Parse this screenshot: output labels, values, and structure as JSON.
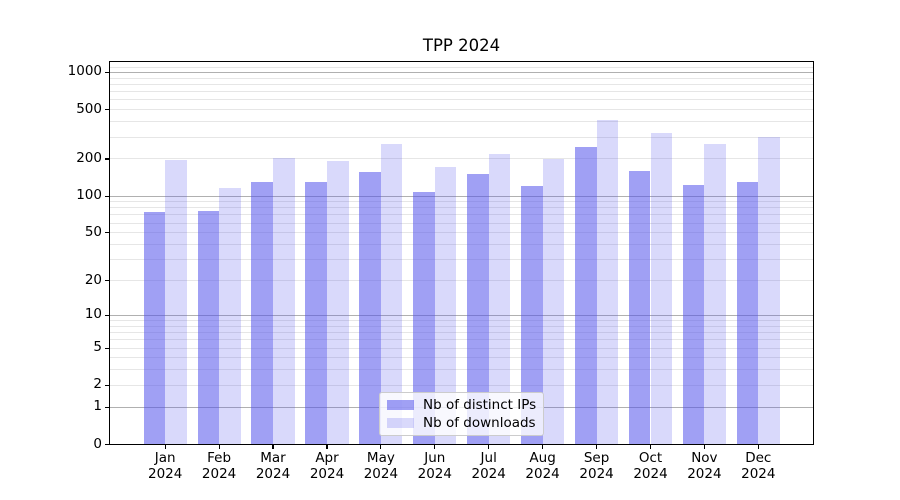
{
  "title": "TPP 2024",
  "colors": {
    "bar_base_rgb": "82,82,235",
    "ips_alpha": 0.55,
    "downloads_alpha": 0.22,
    "grid_major": "#b0b0b0",
    "grid_minor": "#e6e6e6",
    "spine": "#000000",
    "text": "#000000",
    "legend_border": "#cccccc"
  },
  "chart_data": {
    "type": "bar",
    "title": "TPP 2024",
    "categories": [
      "Jan",
      "Feb",
      "Mar",
      "Apr",
      "May",
      "Jun",
      "Jul",
      "Aug",
      "Sep",
      "Oct",
      "Nov",
      "Dec"
    ],
    "year_label": "2024",
    "series": [
      {
        "name": "Nb of distinct IPs",
        "values": [
          74,
          75,
          130,
          130,
          156,
          107,
          151,
          119,
          247,
          158,
          122,
          130
        ]
      },
      {
        "name": "Nb of downloads",
        "values": [
          196,
          116,
          203,
          192,
          260,
          170,
          216,
          198,
          409,
          321,
          260,
          298
        ]
      }
    ],
    "xlabel": "",
    "ylabel": "",
    "yscale": "symlog",
    "y_ticks": [
      0,
      1,
      2,
      5,
      10,
      20,
      50,
      100,
      200,
      500,
      1000
    ],
    "y_minor_gridlines": [
      2,
      3,
      4,
      5,
      6,
      7,
      8,
      9,
      20,
      30,
      40,
      50,
      60,
      70,
      80,
      90,
      200,
      300,
      400,
      500,
      600,
      700,
      800,
      900,
      1100
    ],
    "y_major_gridlines": [
      1,
      10,
      100,
      1000
    ],
    "ylim": [
      0,
      1210
    ],
    "grid": true,
    "legend_position": "lower center"
  }
}
